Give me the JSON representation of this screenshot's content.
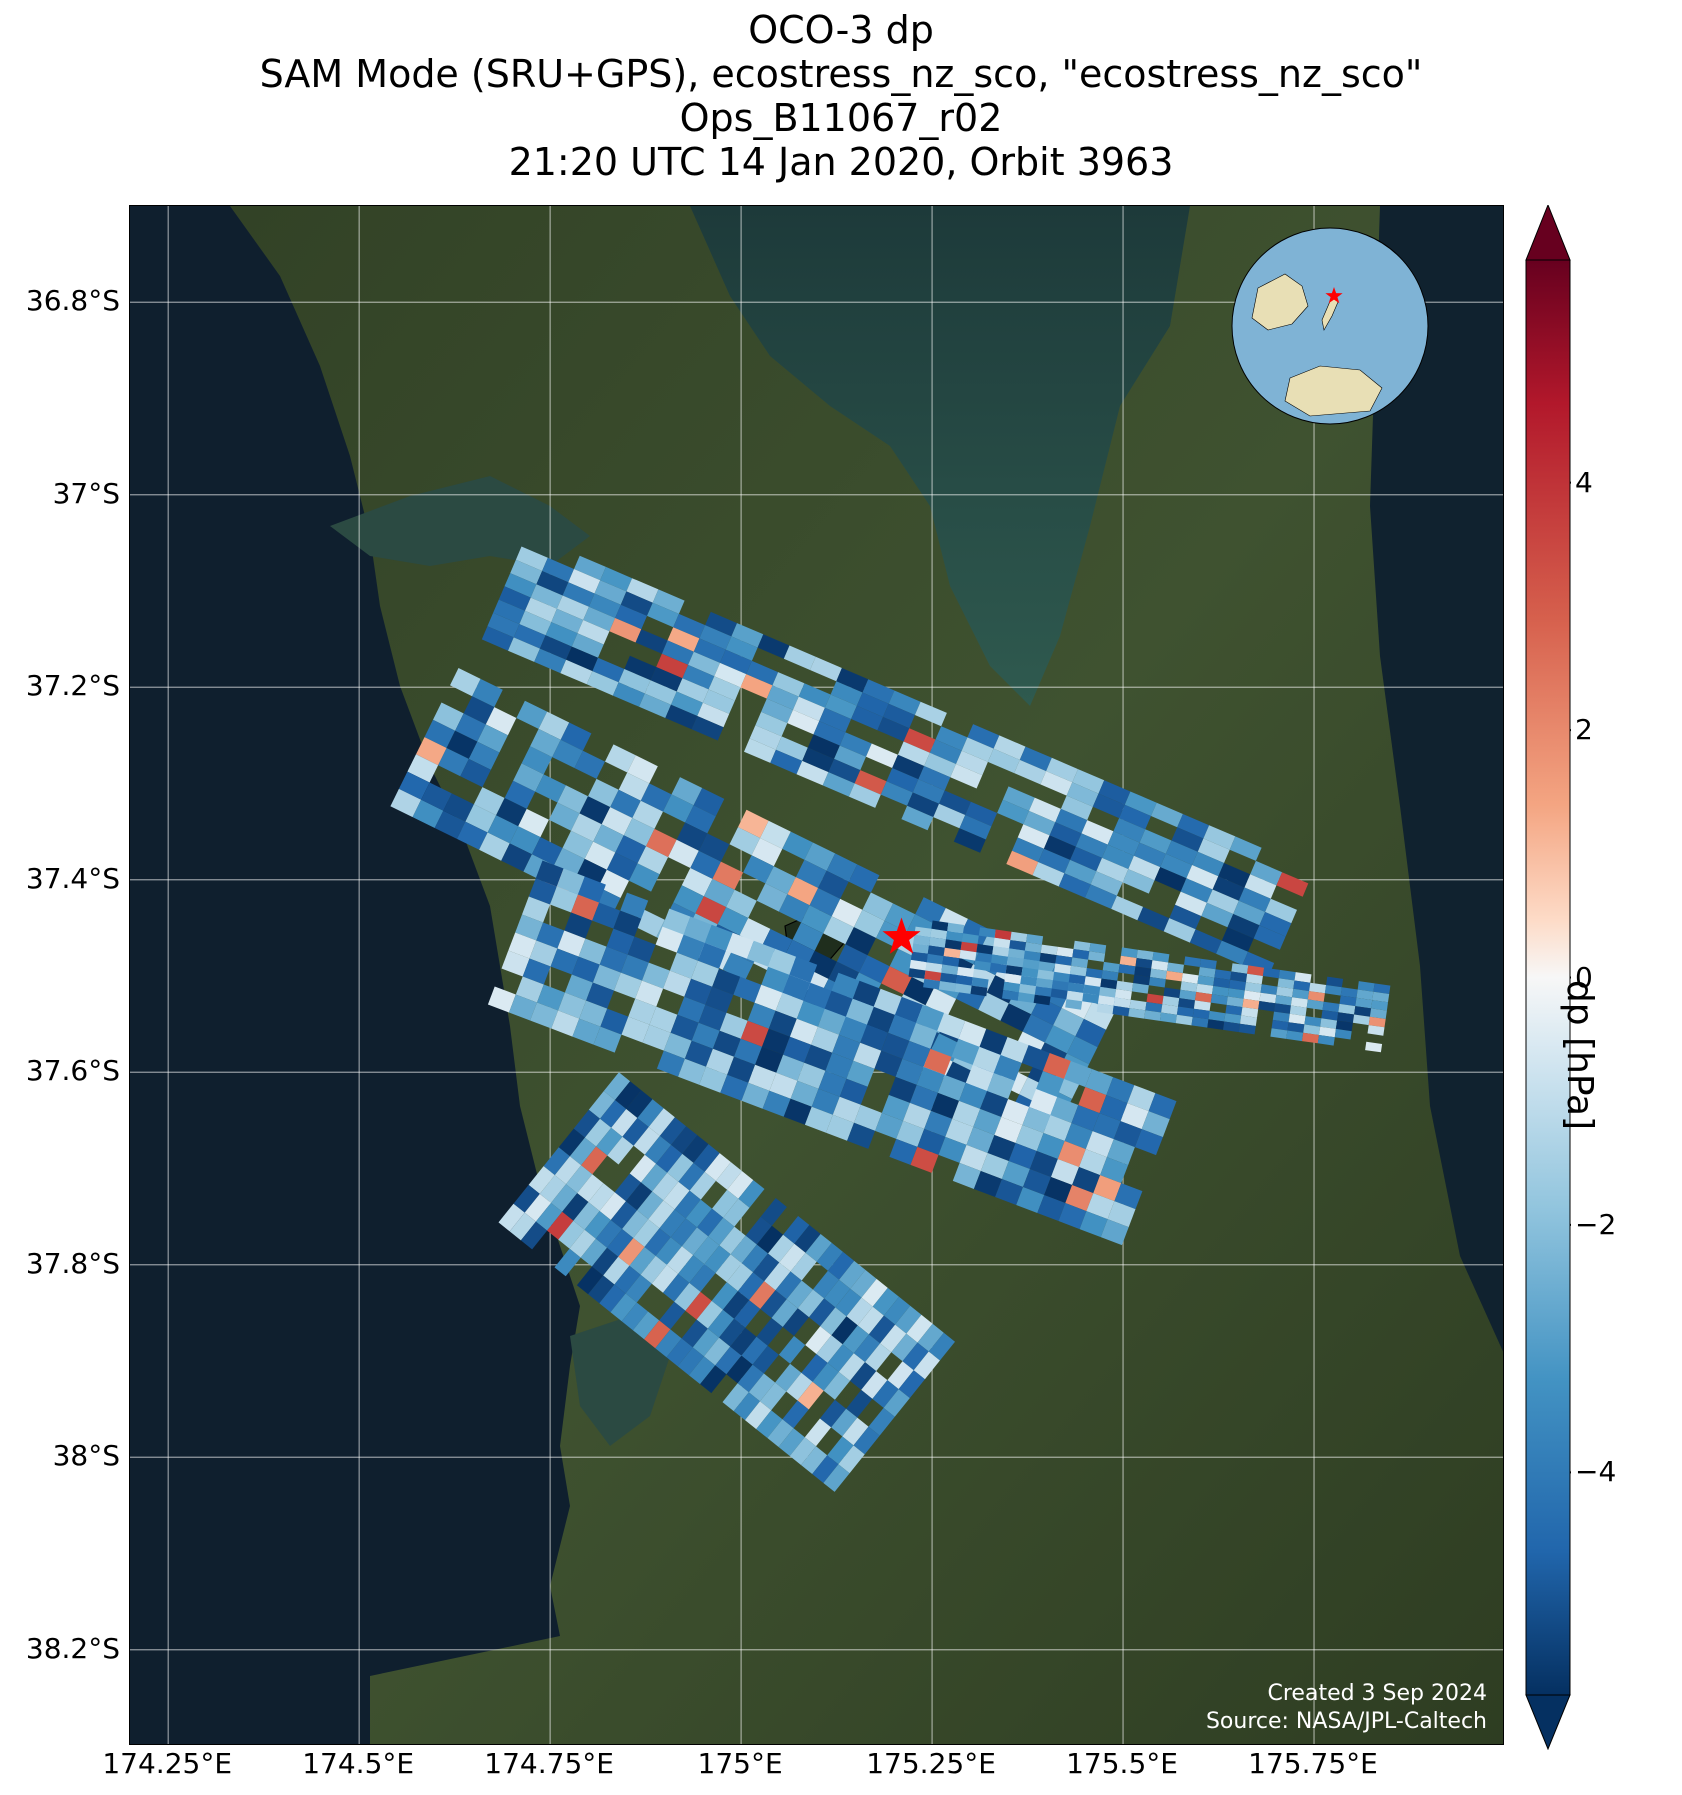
{
  "title": {
    "line1": "OCO-3 dp",
    "line2": "SAM Mode (SRU+GPS), ecostress_nz_sco, \"ecostress_nz_sco\"",
    "line3": "Ops_B11067_r02",
    "line4": "21:20 UTC 14 Jan 2020, Orbit 3963"
  },
  "map": {
    "lon_range": [
      174.2,
      176.0
    ],
    "lat_range": [
      -38.3,
      -36.7
    ],
    "lat_ticks": [
      {
        "value": -36.8,
        "label": "36.8°S"
      },
      {
        "value": -37.0,
        "label": "37°S"
      },
      {
        "value": -37.2,
        "label": "37.2°S"
      },
      {
        "value": -37.4,
        "label": "37.4°S"
      },
      {
        "value": -37.6,
        "label": "37.6°S"
      },
      {
        "value": -37.8,
        "label": "37.8°S"
      },
      {
        "value": -38.0,
        "label": "38°S"
      },
      {
        "value": -38.2,
        "label": "38.2°S"
      }
    ],
    "lon_ticks": [
      {
        "value": 174.25,
        "label": "174.25°E"
      },
      {
        "value": 174.5,
        "label": "174.5°E"
      },
      {
        "value": 174.75,
        "label": "174.75°E"
      },
      {
        "value": 175.0,
        "label": "175°E"
      },
      {
        "value": 175.25,
        "label": "175.25°E"
      },
      {
        "value": 175.5,
        "label": "175.5°E"
      },
      {
        "value": 175.75,
        "label": "175.75°E"
      }
    ],
    "target": {
      "lon": 175.21,
      "lat": -37.46
    },
    "colors": {
      "ocean": "#0f1f2e",
      "land": "#3a4a2a",
      "target_star": "#ff0000",
      "inset_ocean": "#7fb3d5",
      "inset_land": "#e8dfb5"
    }
  },
  "credits": {
    "created": "Created 3 Sep 2024",
    "source": "Source: NASA/JPL-Caltech"
  },
  "colorbar": {
    "label": "dp [hPa]",
    "range": [
      -5.8,
      5.8
    ],
    "colormap": "RdBu_r",
    "ticks": [
      {
        "value": 4,
        "label": "4"
      },
      {
        "value": 2,
        "label": "2"
      },
      {
        "value": 0,
        "label": "0"
      },
      {
        "value": -2,
        "label": "−2"
      },
      {
        "value": -4,
        "label": "−4"
      }
    ]
  },
  "swaths": [
    {
      "lon0": 174.72,
      "lat0": -37.04,
      "lon1": 175.75,
      "lat1": -37.39,
      "width": 0.12
    },
    {
      "lon0": 174.63,
      "lat0": -37.18,
      "lon1": 175.5,
      "lat1": -37.52,
      "width": 0.16
    },
    {
      "lon0": 174.74,
      "lat0": -37.38,
      "lon1": 175.57,
      "lat1": -37.63,
      "width": 0.16
    },
    {
      "lon0": 174.84,
      "lat0": -37.6,
      "lon1": 175.28,
      "lat1": -37.88,
      "width": 0.2
    },
    {
      "lon0": 175.23,
      "lat0": -37.44,
      "lon1": 175.85,
      "lat1": -37.51,
      "width": 0.07
    }
  ]
}
